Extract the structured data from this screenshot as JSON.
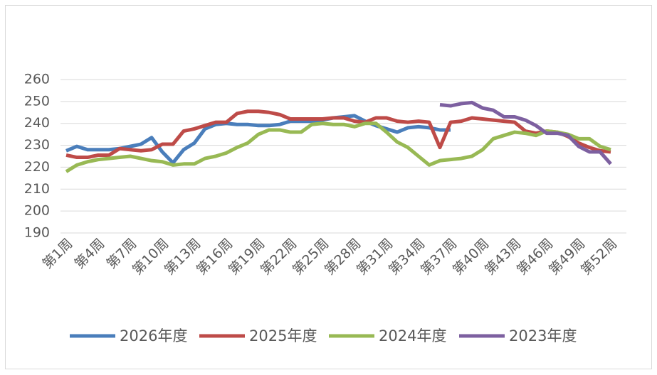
{
  "chart_data": {
    "type": "line",
    "categories": [
      "第1周",
      null,
      null,
      "第4周",
      null,
      null,
      "第7周",
      null,
      null,
      "第10周",
      null,
      null,
      "第13周",
      null,
      null,
      "第16周",
      null,
      null,
      "第19周",
      null,
      null,
      "第22周",
      null,
      null,
      "第25周",
      null,
      null,
      "第28周",
      null,
      null,
      "第31周",
      null,
      null,
      "第34周",
      null,
      null,
      "第37周",
      null,
      null,
      "第40周",
      null,
      null,
      "第43周",
      null,
      null,
      "第46周",
      null,
      null,
      "第49周",
      null,
      null,
      "第52周"
    ],
    "series": [
      {
        "name": "2026年度",
        "color": "#4a7ebb",
        "values": [
          227.5,
          229.5,
          228,
          228,
          228,
          228.5,
          229.5,
          230.5,
          233.5,
          227,
          222,
          228,
          231,
          237.5,
          239.5,
          240,
          239.5,
          239.5,
          239,
          239,
          239.5,
          241,
          241,
          241,
          241.5,
          242.5,
          243,
          243.5,
          241,
          239,
          237.5,
          236,
          238,
          238.5,
          238,
          237,
          237,
          null,
          null,
          null,
          null,
          null,
          null,
          null,
          null,
          null,
          null,
          null,
          null,
          null,
          null,
          null
        ]
      },
      {
        "name": "2025年度",
        "color": "#be4b48",
        "values": [
          225.5,
          224.5,
          224.5,
          225.5,
          225.5,
          228.5,
          228,
          227.5,
          228,
          230.5,
          230.5,
          236.5,
          237.5,
          239,
          240.5,
          240.5,
          244.5,
          245.5,
          245.5,
          245,
          244,
          242,
          242,
          242,
          242,
          242.5,
          242.5,
          241,
          240.5,
          242.5,
          242.5,
          241,
          240.5,
          241,
          240.5,
          229,
          240.5,
          241,
          242.5,
          242,
          241.5,
          241,
          240.5,
          236.5,
          235.5,
          236.5,
          236,
          234,
          231,
          229,
          227.5,
          227
        ]
      },
      {
        "name": "2024年度",
        "color": "#98b954",
        "values": [
          218,
          221,
          222.5,
          223.5,
          224,
          224.5,
          225,
          224,
          223,
          222.5,
          221,
          221.5,
          221.5,
          224,
          225,
          226.5,
          229,
          231,
          235,
          237,
          237,
          236,
          236,
          239.5,
          240,
          239.5,
          239.5,
          238.5,
          240,
          240,
          236,
          231.5,
          229,
          225,
          221,
          223,
          223.5,
          224,
          225,
          228,
          233,
          234.5,
          236,
          235.5,
          234.5,
          236.5,
          236,
          235,
          233,
          233,
          229.5,
          228
        ]
      },
      {
        "name": "2023年度",
        "color": "#7d60a0",
        "values": [
          null,
          null,
          null,
          null,
          null,
          null,
          null,
          null,
          null,
          null,
          null,
          null,
          null,
          null,
          null,
          null,
          null,
          null,
          null,
          null,
          null,
          null,
          null,
          null,
          null,
          null,
          null,
          null,
          null,
          null,
          null,
          null,
          null,
          null,
          null,
          248.5,
          248,
          249,
          249.5,
          247,
          246,
          243,
          243,
          241.5,
          239,
          235.5,
          235.5,
          234.5,
          229.5,
          227,
          227,
          221.5
        ]
      }
    ],
    "ylim": [
      190,
      260
    ],
    "yticks": [
      190,
      200,
      210,
      220,
      230,
      240,
      250,
      260
    ],
    "grid": true,
    "legend": "bottom"
  }
}
